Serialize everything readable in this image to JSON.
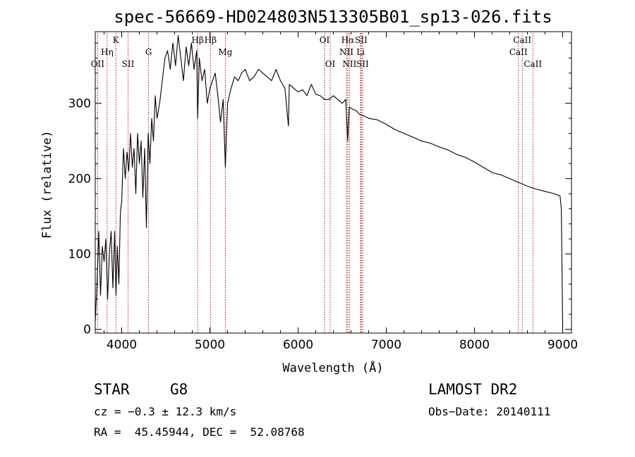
{
  "chart_data": {
    "type": "line",
    "title": "spec-56669-HD024803N513305B01_sp13-026.fits",
    "xlabel": "Wavelength (Å)",
    "ylabel": "Flux (relative)",
    "xlim": [
      3700,
      9100
    ],
    "ylim": [
      -5,
      395
    ],
    "xticks": [
      4000,
      5000,
      6000,
      7000,
      8000,
      9000
    ],
    "yticks": [
      0,
      100,
      200,
      300
    ],
    "grid": false,
    "series": [
      {
        "x": [
          3700,
          3720,
          3740,
          3760,
          3780,
          3800,
          3820,
          3840,
          3860,
          3880,
          3900,
          3920,
          3935,
          3950,
          3968,
          3985,
          4000,
          4020,
          4040,
          4060,
          4080,
          4100,
          4120,
          4140,
          4160,
          4180,
          4200,
          4220,
          4240,
          4260,
          4280,
          4300,
          4320,
          4340,
          4360,
          4380,
          4400,
          4430,
          4460,
          4490,
          4520,
          4550,
          4580,
          4610,
          4640,
          4670,
          4700,
          4730,
          4760,
          4790,
          4820,
          4850,
          4861,
          4880,
          4910,
          4940,
          4970,
          5000,
          5030,
          5060,
          5090,
          5120,
          5150,
          5175,
          5200,
          5240,
          5280,
          5320,
          5360,
          5400,
          5450,
          5500,
          5550,
          5600,
          5650,
          5700,
          5750,
          5800,
          5850,
          5890,
          5900,
          5950,
          6000,
          6050,
          6100,
          6150,
          6200,
          6250,
          6300,
          6350,
          6400,
          6450,
          6500,
          6540,
          6563,
          6580,
          6620,
          6660,
          6700,
          6750,
          6800,
          6900,
          7000,
          7100,
          7200,
          7300,
          7400,
          7500,
          7600,
          7700,
          7800,
          7900,
          8000,
          8100,
          8200,
          8300,
          8400,
          8500,
          8600,
          8700,
          8800,
          8900,
          8970,
          8985,
          9000
        ],
        "y": [
          10,
          60,
          130,
          45,
          110,
          90,
          120,
          40,
          100,
          130,
          55,
          130,
          45,
          110,
          60,
          155,
          170,
          240,
          200,
          235,
          210,
          260,
          215,
          240,
          180,
          260,
          220,
          250,
          175,
          240,
          135,
          260,
          220,
          280,
          250,
          310,
          280,
          300,
          330,
          360,
          370,
          345,
          380,
          350,
          390,
          360,
          330,
          375,
          350,
          380,
          345,
          370,
          280,
          360,
          330,
          345,
          300,
          320,
          330,
          340,
          310,
          275,
          305,
          215,
          300,
          320,
          335,
          330,
          340,
          345,
          330,
          335,
          345,
          340,
          335,
          330,
          345,
          330,
          320,
          270,
          325,
          320,
          315,
          318,
          310,
          325,
          312,
          310,
          305,
          305,
          310,
          305,
          300,
          305,
          250,
          295,
          292,
          290,
          285,
          283,
          280,
          278,
          272,
          265,
          260,
          255,
          250,
          247,
          242,
          238,
          232,
          228,
          222,
          215,
          208,
          205,
          200,
          195,
          190,
          186,
          183,
          180,
          177,
          160,
          0
        ]
      }
    ],
    "line_markers": [
      {
        "label": "OII",
        "x": 3727,
        "row": 3
      },
      {
        "label": "Hη",
        "x": 3835,
        "row": 2
      },
      {
        "label": "K",
        "x": 3934,
        "row": 1
      },
      {
        "label": "SII",
        "x": 4072,
        "row": 3
      },
      {
        "label": "G",
        "x": 4304,
        "row": 2
      },
      {
        "label": "Hβ",
        "x": 4861,
        "row": 1
      },
      {
        "label": "Hβ",
        "x": 5007,
        "row": 1
      },
      {
        "label": "Mg",
        "x": 5175,
        "row": 2
      },
      {
        "label": "OI",
        "x": 6300,
        "row": 1
      },
      {
        "label": "OI",
        "x": 6364,
        "row": 3
      },
      {
        "label": "Hα",
        "x": 6563,
        "row": 1
      },
      {
        "label": "NII",
        "x": 6548,
        "row": 2
      },
      {
        "label": "NII",
        "x": 6583,
        "row": 3
      },
      {
        "label": "SII",
        "x": 6716,
        "row": 1
      },
      {
        "label": "Li",
        "x": 6708,
        "row": 2
      },
      {
        "label": "SII",
        "x": 6731,
        "row": 3
      },
      {
        "label": "CaII",
        "x": 8498,
        "row": 2
      },
      {
        "label": "CaII",
        "x": 8542,
        "row": 1
      },
      {
        "label": "CaII",
        "x": 8662,
        "row": 3
      }
    ]
  },
  "info": {
    "class_label": "STAR",
    "subclass": "G8",
    "survey": "LAMOST DR2",
    "cz": "cz = −0.3 ± 12.3 km/s",
    "obs_date": "Obs−Date: 20140111",
    "coords": "RA =  45.45944, DEC =  52.08768"
  }
}
